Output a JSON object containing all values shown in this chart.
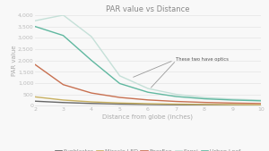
{
  "title": "PAR value vs Distance",
  "xlabel": "Distance from globe (inches)",
  "ylabel": "PAR value",
  "xlim": [
    2,
    10
  ],
  "ylim": [
    0,
    4000
  ],
  "yticks": [
    0,
    500,
    1000,
    1500,
    2000,
    2500,
    3000,
    3500,
    4000
  ],
  "xticks": [
    2,
    3,
    4,
    5,
    6,
    7,
    8,
    9,
    10
  ],
  "x": [
    2,
    3,
    4,
    5,
    6,
    7,
    8,
    9,
    10
  ],
  "series": {
    "Sunblaster": {
      "y": [
        200,
        140,
        100,
        72,
        54,
        42,
        34,
        28,
        24
      ],
      "color": "#666666",
      "lw": 1.0
    },
    "Miracle LED": {
      "y": [
        390,
        250,
        170,
        120,
        90,
        70,
        56,
        46,
        39
      ],
      "color": "#c8b060",
      "lw": 1.0
    },
    "EnerEco": {
      "y": [
        1820,
        930,
        560,
        365,
        255,
        188,
        145,
        116,
        96
      ],
      "color": "#c87050",
      "lw": 1.0
    },
    "Sansi": {
      "y": [
        3750,
        4000,
        3050,
        1320,
        760,
        500,
        360,
        290,
        245
      ],
      "color": "#c5e0d8",
      "lw": 1.0
    },
    "Urban Leaf": {
      "y": [
        3500,
        3100,
        2000,
        980,
        595,
        405,
        305,
        250,
        215
      ],
      "color": "#60b8a0",
      "lw": 1.0
    }
  },
  "annotation_text": "These two have optics",
  "background_color": "#f8f8f8",
  "grid_color": "#e8e8e8",
  "title_fontsize": 6,
  "label_fontsize": 5,
  "tick_fontsize": 4.5,
  "legend_fontsize": 4.5
}
